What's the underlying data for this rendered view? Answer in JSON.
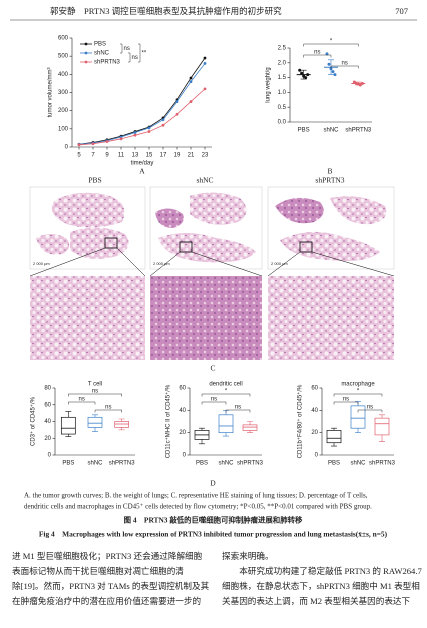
{
  "header": {
    "running_title": "郭安静　PRTN3 调控巨噬细胞表型及其抗肿瘤作用的初步研究",
    "page": "707"
  },
  "chart_data": [
    {
      "type": "line",
      "ylabel": "tumor volume/mm³",
      "xlabel": "time/day",
      "x": [
        5,
        7,
        9,
        11,
        13,
        15,
        17,
        19,
        21,
        23
      ],
      "xlim": [
        4,
        24
      ],
      "xticks": [
        5,
        7,
        9,
        11,
        13,
        15,
        17,
        19,
        21,
        23
      ],
      "ylim": [
        0,
        600
      ],
      "yticks": [
        0,
        100,
        200,
        300,
        400,
        500,
        600
      ],
      "legend": "upper left",
      "series": [
        {
          "name": "PBS",
          "color": "#111111",
          "values": [
            15,
            25,
            40,
            60,
            85,
            110,
            160,
            260,
            380,
            490
          ]
        },
        {
          "name": "shNC",
          "color": "#3a7ec8",
          "values": [
            15,
            22,
            35,
            55,
            80,
            105,
            150,
            250,
            360,
            460
          ]
        },
        {
          "name": "shPRTN3",
          "color": "#e0606e",
          "values": [
            12,
            18,
            30,
            45,
            65,
            85,
            120,
            180,
            250,
            320
          ]
        }
      ],
      "annotations": [
        "ns",
        "ns",
        "**"
      ]
    },
    {
      "type": "dot-bar",
      "ylabel": "lung weight/g",
      "categories": [
        "PBS",
        "shNC",
        "shPRTN3"
      ],
      "colors": [
        "#111111",
        "#3a7ec8",
        "#e0606e"
      ],
      "values": [
        1.6,
        1.85,
        1.3
      ],
      "errors": [
        0.15,
        0.25,
        0.05
      ],
      "points": [
        [
          1.75,
          1.65,
          1.55,
          1.5,
          1.6
        ],
        [
          2.3,
          1.95,
          1.8,
          1.7,
          1.6
        ],
        [
          1.35,
          1.3,
          1.28,
          1.25,
          1.3
        ]
      ],
      "ylim": [
        0,
        2.5
      ],
      "yticks": [
        {
          "value": 0,
          "label": "0.0"
        },
        {
          "value": 0.5,
          "label": "0.5"
        },
        {
          "value": 1,
          "label": "1.0"
        },
        {
          "value": 1.5,
          "label": "1.5"
        },
        {
          "value": 2,
          "label": "2.0"
        },
        {
          "value": 2.5,
          "label": "2.5"
        }
      ],
      "annotations": [
        "*",
        "ns",
        "ns"
      ]
    },
    {
      "type": "box",
      "title": "T cell",
      "ylabel": "CD3⁺ of CD45⁺/%",
      "categories": [
        "PBS",
        "shNC",
        "shPRTN3"
      ],
      "colors": [
        "#111111",
        "#3a7ec8",
        "#e0606e"
      ],
      "ylim": [
        0,
        80
      ],
      "yticks": [
        0,
        20,
        40,
        60,
        80
      ],
      "boxes": [
        {
          "min": 22,
          "q1": 25,
          "median": 32,
          "q3": 45,
          "max": 52
        },
        {
          "min": 28,
          "q1": 33,
          "median": 38,
          "q3": 45,
          "max": 48
        },
        {
          "min": 30,
          "q1": 33,
          "median": 37,
          "q3": 40,
          "max": 43
        }
      ],
      "annotations": [
        "ns",
        "ns",
        "ns"
      ]
    },
    {
      "type": "box",
      "title": "dendritic cell",
      "ylabel": "CD11c⁺MHC II of CD45⁺/%",
      "categories": [
        "PBS",
        "shNC",
        "shPRTN3"
      ],
      "colors": [
        "#111111",
        "#3a7ec8",
        "#e0606e"
      ],
      "ylim": [
        0,
        60
      ],
      "yticks": [
        0,
        20,
        40,
        60
      ],
      "boxes": [
        {
          "min": 10,
          "q1": 14,
          "median": 18,
          "q3": 22,
          "max": 24
        },
        {
          "min": 17,
          "q1": 20,
          "median": 26,
          "q3": 36,
          "max": 40
        },
        {
          "min": 20,
          "q1": 22,
          "median": 25,
          "q3": 27,
          "max": 30
        }
      ],
      "annotations": [
        "*",
        "ns",
        "ns"
      ]
    },
    {
      "type": "box",
      "title": "macrophage",
      "ylabel": "CD11b⁺F4/80⁺ of CD45⁺/%",
      "categories": [
        "PBS",
        "shNC",
        "shPRTN3"
      ],
      "colors": [
        "#111111",
        "#3a7ec8",
        "#e0606e"
      ],
      "ylim": [
        0,
        60
      ],
      "yticks": [
        0,
        20,
        40,
        60
      ],
      "boxes": [
        {
          "min": 8,
          "q1": 11,
          "median": 15,
          "q3": 22,
          "max": 24
        },
        {
          "min": 20,
          "q1": 24,
          "median": 33,
          "q3": 44,
          "max": 48
        },
        {
          "min": 12,
          "q1": 18,
          "median": 28,
          "q3": 33,
          "max": 36
        }
      ],
      "annotations": [
        "*",
        "ns",
        "ns"
      ]
    }
  ],
  "figure": {
    "panel_labels": [
      "A",
      "B",
      "C",
      "D"
    ],
    "histology_titles": [
      "PBS",
      "shNC",
      "shPRTN3"
    ],
    "scale_bars": [
      "2 000 μm",
      "2 000 μm",
      "2 000 μm"
    ],
    "notes": [
      "A. the tumor growth curves; B. the weight of lungs; C. representative HE staining of lung tissues; D. percentage of T cells,",
      "dendritic cells and macrophages in CD45⁺ cells detected by flow cytometry; *P<0.05, **P<0.01 compared with PBS group."
    ],
    "caption_cn": "图 4　PRTN3 敲低的巨噬细胞可抑制肿瘤进展和肺转移",
    "caption_en": "Fig 4　Macrophages with low expression of PRTN3 inhibited tumor progression and lung metastasis(x̄±s, n=5)"
  },
  "body": {
    "left": [
      "进 M1 型巨噬细胞极化；PRTN3 还会通过降解细胞",
      "表面标记物从而干扰巨噬细胞对凋亡细胞的清",
      "除[19]。然而，PRTN3 对 TAMs 的表型调控机制及其",
      "在肿瘤免疫治疗中的潜在应用价值还需要进一步的"
    ],
    "right": [
      "探索来明确。",
      "　　本研究成功构建了稳定敲低 PRTN3 的 RAW264.7",
      "细胞株，在静息状态下，shPRTN3 细胞中 M1 表型相",
      "关基因的表达上调，而 M2 表型相关基因的表达下"
    ]
  }
}
